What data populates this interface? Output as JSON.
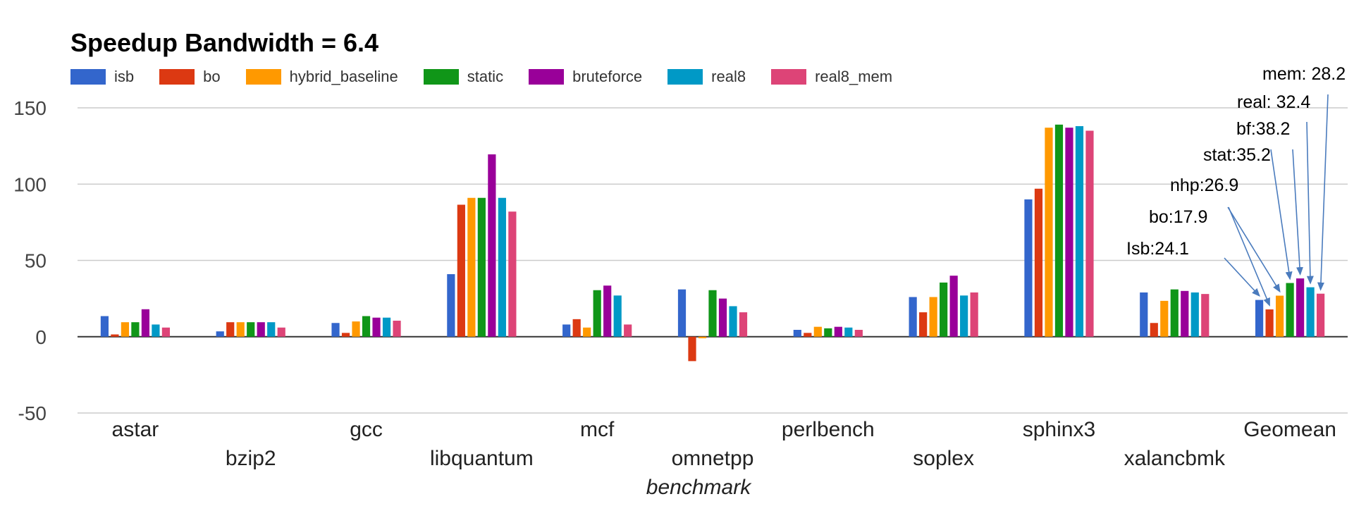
{
  "chart_data": {
    "type": "bar",
    "title": "Speedup Bandwidth = 6.4",
    "xlabel": "benchmark",
    "ylabel": "",
    "ylim": [
      -50,
      150
    ],
    "yticks": [
      150,
      100,
      50,
      0,
      -50
    ],
    "grid": true,
    "legend_position": "top-left",
    "categories": [
      "astar",
      "bzip2",
      "gcc",
      "libquantum",
      "mcf",
      "omnetpp",
      "perlbench",
      "soplex",
      "sphinx3",
      "xalancbmk",
      "Geomean"
    ],
    "series": [
      {
        "name": "isb",
        "color": "#3366cc",
        "values": [
          13.5,
          3.5,
          9,
          41,
          8,
          31,
          4.5,
          26,
          90,
          29,
          24.1
        ]
      },
      {
        "name": "bo",
        "color": "#dc3912",
        "values": [
          1.5,
          9.5,
          2.5,
          86.5,
          11.5,
          -16,
          2.5,
          16,
          97,
          9,
          17.9
        ]
      },
      {
        "name": "hybrid_baseline",
        "color": "#ff9900",
        "values": [
          9.5,
          9.5,
          10,
          91,
          6,
          -1,
          6.5,
          26,
          137,
          23.5,
          26.9
        ]
      },
      {
        "name": "static",
        "color": "#109618",
        "values": [
          9.5,
          9.5,
          13.5,
          91,
          30.5,
          30.5,
          5.5,
          35.5,
          139,
          31,
          35.2
        ]
      },
      {
        "name": "bruteforce",
        "color": "#990099",
        "values": [
          18,
          9.5,
          12.5,
          119.5,
          33.5,
          25,
          6.5,
          40,
          137,
          30,
          38.2
        ]
      },
      {
        "name": "real8",
        "color": "#0099c6",
        "values": [
          8,
          9.5,
          12.5,
          91,
          27,
          20,
          6,
          27,
          138,
          29,
          32.4
        ]
      },
      {
        "name": "real8_mem",
        "color": "#dd4477",
        "values": [
          6,
          6,
          10.5,
          82,
          8,
          16,
          4.5,
          29,
          135,
          28,
          28.2
        ]
      }
    ],
    "annotations": [
      "Isb:24.1",
      "bo:17.9",
      "nhp:26.9",
      "stat:35.2",
      "bf:38.2",
      "real: 32.4",
      "mem: 28.2"
    ]
  }
}
